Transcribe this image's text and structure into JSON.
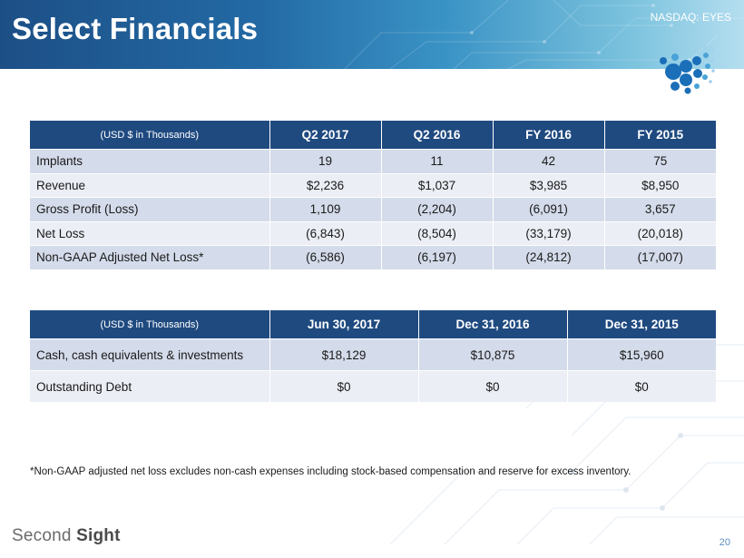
{
  "header": {
    "title": "Select Financials",
    "ticker": "NASDAQ: EYES"
  },
  "table1": {
    "unit_label": "(USD $ in Thousands)",
    "columns": [
      "Q2 2017",
      "Q2 2016",
      "FY 2016",
      "FY 2015"
    ],
    "rows": [
      {
        "label": "Implants",
        "values": [
          "19",
          "11",
          "42",
          "75"
        ]
      },
      {
        "label": "Revenue",
        "values": [
          "$2,236",
          "$1,037",
          "$3,985",
          "$8,950"
        ]
      },
      {
        "label": "Gross Profit (Loss)",
        "values": [
          "1,109",
          "(2,204)",
          "(6,091)",
          "3,657"
        ]
      },
      {
        "label": "Net Loss",
        "values": [
          "(6,843)",
          "(8,504)",
          "(33,179)",
          "(20,018)"
        ]
      },
      {
        "label": "Non-GAAP Adjusted Net Loss*",
        "values": [
          "(6,586)",
          "(6,197)",
          "(24,812)",
          "(17,007)"
        ]
      }
    ]
  },
  "table2": {
    "unit_label": "(USD $ in Thousands)",
    "columns": [
      "Jun 30, 2017",
      "Dec 31, 2016",
      "Dec 31, 2015"
    ],
    "rows": [
      {
        "label": "Cash, cash equivalents & investments",
        "values": [
          "$18,129",
          "$10,875",
          "$15,960"
        ]
      },
      {
        "label": "Outstanding Debt",
        "values": [
          "$0",
          "$0",
          "$0"
        ]
      }
    ]
  },
  "footnote": "*Non-GAAP adjusted net loss excludes non-cash expenses including stock-based compensation and reserve for excess inventory.",
  "logo": {
    "part1": "Second ",
    "part2": "Sight"
  },
  "page_number": "20",
  "colors": {
    "header_bar": "#1f4a80",
    "row_dark": "#d4dbea",
    "row_light": "#ebeef5",
    "page_number": "#5b8ec4"
  },
  "icons": {
    "brand_mark": "dotted-globe-icon"
  }
}
